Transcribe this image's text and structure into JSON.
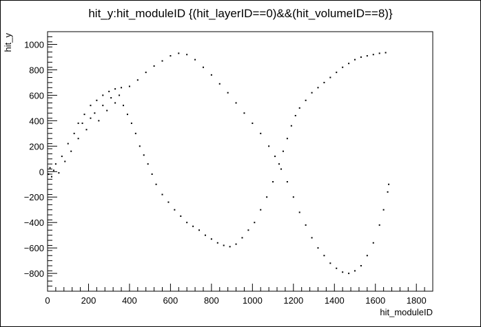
{
  "chart_data": {
    "type": "scatter",
    "title": "hit_y:hit_moduleID {(hit_layerID==0)&&(hit_volumeID==8)}",
    "xlabel": "hit_moduleID",
    "ylabel": "hit_y",
    "xlim": [
      0,
      1880
    ],
    "ylim": [
      -940,
      1100
    ],
    "xticks": [
      0,
      200,
      400,
      600,
      800,
      1000,
      1200,
      1400,
      1600,
      1800
    ],
    "yticks": [
      -800,
      -600,
      -400,
      -200,
      0,
      200,
      400,
      600,
      800,
      1000
    ],
    "series": [
      {
        "points": [
          [
            5,
            -20
          ],
          [
            12,
            30
          ],
          [
            20,
            -40
          ],
          [
            30,
            10
          ],
          [
            40,
            60
          ],
          [
            55,
            -10
          ],
          [
            70,
            120
          ],
          [
            85,
            80
          ],
          [
            100,
            220
          ],
          [
            115,
            160
          ],
          [
            130,
            300
          ],
          [
            150,
            260
          ],
          [
            170,
            380
          ],
          [
            190,
            330
          ],
          [
            210,
            420
          ],
          [
            230,
            460
          ],
          [
            250,
            400
          ],
          [
            270,
            520
          ],
          [
            290,
            480
          ],
          [
            310,
            580
          ],
          [
            330,
            540
          ],
          [
            350,
            600
          ],
          [
            370,
            520
          ],
          [
            390,
            450
          ],
          [
            410,
            380
          ],
          [
            430,
            300
          ],
          [
            450,
            200
          ],
          [
            470,
            130
          ],
          [
            490,
            60
          ],
          [
            510,
            -20
          ],
          [
            530,
            -100
          ],
          [
            560,
            -180
          ],
          [
            590,
            -240
          ],
          [
            620,
            -300
          ],
          [
            650,
            -350
          ],
          [
            680,
            -400
          ],
          [
            710,
            -430
          ],
          [
            740,
            -460
          ],
          [
            770,
            -500
          ],
          [
            800,
            -530
          ],
          [
            830,
            -560
          ],
          [
            860,
            -580
          ],
          [
            890,
            -590
          ],
          [
            920,
            -570
          ],
          [
            950,
            -520
          ],
          [
            980,
            -460
          ],
          [
            1010,
            -400
          ],
          [
            1040,
            -300
          ],
          [
            1070,
            -200
          ],
          [
            1100,
            -80
          ],
          [
            1130,
            60
          ],
          [
            1150,
            160
          ],
          [
            1170,
            260
          ],
          [
            1190,
            360
          ],
          [
            1210,
            440
          ],
          [
            1230,
            500
          ],
          [
            1260,
            560
          ],
          [
            1290,
            620
          ],
          [
            1320,
            660
          ],
          [
            1350,
            700
          ],
          [
            1380,
            740
          ],
          [
            1410,
            780
          ],
          [
            1440,
            820
          ],
          [
            1470,
            850
          ],
          [
            1500,
            880
          ],
          [
            1530,
            900
          ],
          [
            1560,
            910
          ],
          [
            1590,
            920
          ],
          [
            1620,
            930
          ],
          [
            1650,
            935
          ],
          [
            150,
            380
          ],
          [
            180,
            450
          ],
          [
            210,
            520
          ],
          [
            240,
            560
          ],
          [
            270,
            600
          ],
          [
            300,
            630
          ],
          [
            330,
            650
          ],
          [
            360,
            660
          ],
          [
            400,
            670
          ],
          [
            440,
            720
          ],
          [
            480,
            780
          ],
          [
            520,
            830
          ],
          [
            560,
            870
          ],
          [
            600,
            910
          ],
          [
            640,
            930
          ],
          [
            680,
            920
          ],
          [
            720,
            880
          ],
          [
            760,
            820
          ],
          [
            800,
            760
          ],
          [
            840,
            690
          ],
          [
            880,
            620
          ],
          [
            920,
            540
          ],
          [
            960,
            460
          ],
          [
            1000,
            380
          ],
          [
            1040,
            300
          ],
          [
            1080,
            200
          ],
          [
            1110,
            120
          ],
          [
            1140,
            20
          ],
          [
            1170,
            -80
          ],
          [
            1200,
            -200
          ],
          [
            1230,
            -320
          ],
          [
            1260,
            -420
          ],
          [
            1290,
            -520
          ],
          [
            1320,
            -600
          ],
          [
            1350,
            -660
          ],
          [
            1380,
            -720
          ],
          [
            1410,
            -760
          ],
          [
            1440,
            -790
          ],
          [
            1470,
            -800
          ],
          [
            1500,
            -780
          ],
          [
            1530,
            -740
          ],
          [
            1560,
            -660
          ],
          [
            1590,
            -560
          ],
          [
            1620,
            -420
          ],
          [
            1640,
            -300
          ],
          [
            1660,
            -160
          ],
          [
            1665,
            -100
          ]
        ]
      }
    ]
  }
}
